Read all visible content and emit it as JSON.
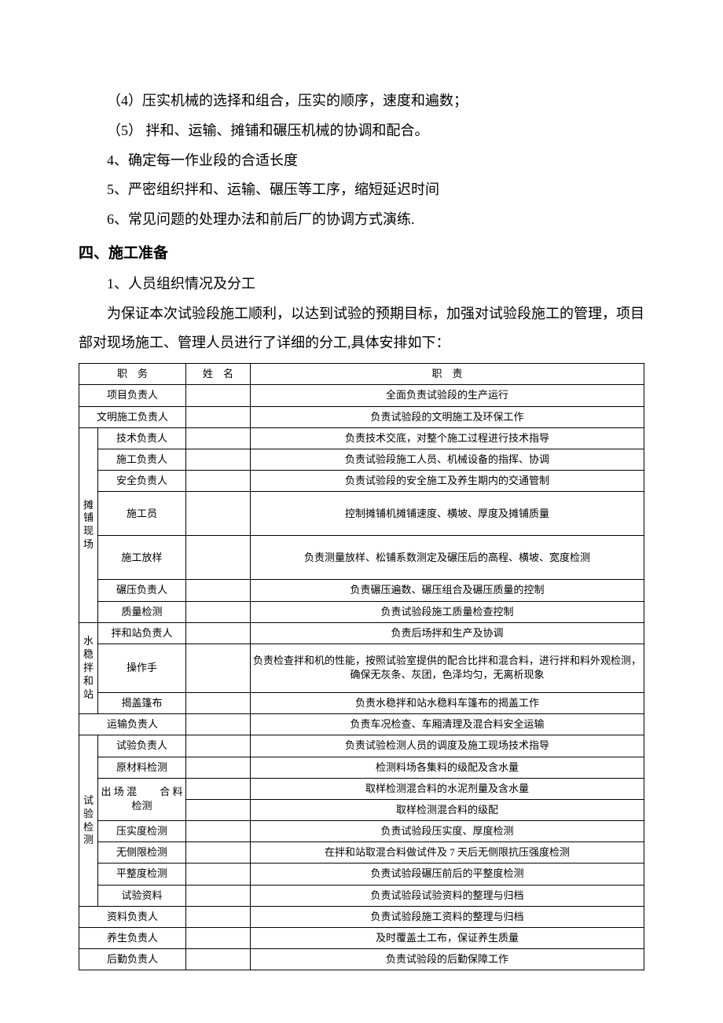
{
  "paragraphs": {
    "p1": "（4）压实机械的选择和组合，压实的顺序，速度和遍数；",
    "p2": "（5） 拌和、运输、摊铺和碾压机械的协调和配合。",
    "p3": "4、确定每一作业段的合适长度",
    "p4": "5、严密组织拌和、运输、碾压等工序，缩短延迟时间",
    "p5": "6、常见问题的处理办法和前后厂的协调方式演练."
  },
  "heading": "四、施工准备",
  "sub": "1、人员组织情况及分工",
  "intro": "为保证本次试验段施工顺利，以达到试验的预期目标，加强对试验段施工的管理，项目部对现场施工、管理人员进行了详细的分工,具体安排如下：",
  "table": {
    "headers": {
      "role": "职　务",
      "name": "姓　名",
      "duty": "职　责"
    },
    "groups": [
      {
        "label": "",
        "rows": [
          {
            "role": "项目负责人",
            "name": "",
            "duty": "全面负责试验段的生产运行"
          },
          {
            "role": "文明施工负责人",
            "name": "",
            "duty": "负责试验段的文明施工及环保工作"
          }
        ]
      },
      {
        "label": "摊铺现场",
        "rows": [
          {
            "role": "技术负责人",
            "name": "",
            "duty": "负责技术交底，对整个施工过程进行技术指导"
          },
          {
            "role": "施工负责人",
            "name": "",
            "duty": "负责试验段施工人员、机械设备的指挥、协调"
          },
          {
            "role": "安全负责人",
            "name": "",
            "duty": "负责试验段的安全施工及养生期内的交通管制"
          },
          {
            "role": "施工员",
            "name": "",
            "duty": "控制摊铺机摊铺速度、横坡、厚度及摊铺质量",
            "tall": true
          },
          {
            "role": "施工放样",
            "name": "",
            "duty": "负责测量放样、松铺系数测定及碾压后的高程、横坡、宽度检测",
            "tall": true
          },
          {
            "role": "碾压负责人",
            "name": "",
            "duty": "负责碾压遍数、碾压组合及碾压质量的控制"
          },
          {
            "role": "质量检测",
            "name": "",
            "duty": "负责试验段施工质量检查控制"
          }
        ]
      },
      {
        "label": "水稳拌和站",
        "rows": [
          {
            "role": "拌和站负责人",
            "name": "",
            "duty": "负责后场拌和生产及协调"
          },
          {
            "role": "操作手",
            "name": "",
            "duty": "负责检查拌和机的性能，按照试验室提供的配合比拌和混合料，进行拌和料外观检测，确保无灰条、灰团，色泽均匀，无离析现象",
            "xtall": true
          },
          {
            "role": "揭盖篷布",
            "name": "",
            "duty": "负责水稳拌和站水稳料车篷布的揭盖工作"
          }
        ]
      },
      {
        "label": "",
        "rows": [
          {
            "role": "运输负责人",
            "name": "",
            "duty": "负责车况检查、车厢清理及混合料安全运输"
          }
        ]
      },
      {
        "label": "试验检测",
        "rows": [
          {
            "role": "试验负责人",
            "name": "",
            "duty": "负责试验检测人员的调度及施工现场技术指导"
          },
          {
            "role": "原材料检测",
            "name": "",
            "duty": "检测料场各集料的级配及含水量"
          },
          {
            "role": "出 场 混　 　合 料检测",
            "name": "",
            "duty": "取样检测混合料的水泥剂量及含水量",
            "merge_role": 2
          },
          {
            "role": "",
            "name": "",
            "duty": "取样检测混合料的级配",
            "skip_role": true
          },
          {
            "role": "压实度检测",
            "name": "",
            "duty": "负责试验段压实度、厚度检测"
          },
          {
            "role": "无侧限检测",
            "name": "",
            "duty": "在拌和站取混合料做试件及 7 天后无侧限抗压强度检测"
          },
          {
            "role": "平整度检测",
            "name": "",
            "duty": "负责试验段碾压前后的平整度检测"
          },
          {
            "role": "试验资料",
            "name": "",
            "duty": "负责试验段试验资料的整理与归档"
          }
        ]
      },
      {
        "label": "",
        "rows": [
          {
            "role": "资料负责人",
            "name": "",
            "duty": "负责试验段施工资料的整理与归档"
          },
          {
            "role": "养生负责人",
            "name": "",
            "duty": "及时覆盖土工布，保证养生质量"
          },
          {
            "role": "后勤负责人",
            "name": "",
            "duty": "负责试验段的后勤保障工作"
          }
        ]
      }
    ]
  }
}
